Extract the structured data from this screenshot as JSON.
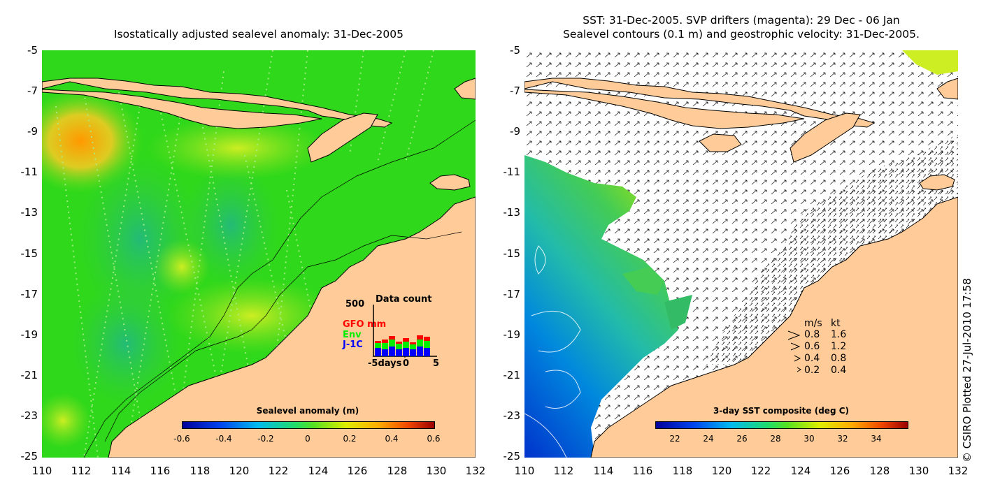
{
  "left_panel": {
    "title": "Isostatically adjusted sealevel anomaly: 31-Dec-2005",
    "y_ticks": [
      "-5",
      "-7",
      "-9",
      "-11",
      "-13",
      "-15",
      "-17",
      "-19",
      "-21",
      "-23",
      "-25"
    ],
    "x_ticks": [
      "110",
      "112",
      "114",
      "116",
      "118",
      "120",
      "122",
      "124",
      "126",
      "128",
      "130",
      "132"
    ],
    "colorbar": {
      "title": "Sealevel anomaly (m)",
      "ticks": [
        "-0.6",
        "-0.4",
        "-0.2",
        "0",
        "0.2",
        "0.4",
        "0.6"
      ]
    },
    "data_count": {
      "title": "Data count",
      "max_label": "500",
      "series": [
        {
          "name": "GFO mm",
          "color": "#ff0000"
        },
        {
          "name": "Env",
          "color": "#00ee00"
        },
        {
          "name": "J-1C",
          "color": "#0000ff"
        }
      ],
      "x_labels": [
        "-5days",
        "0",
        "5"
      ]
    }
  },
  "right_panel": {
    "title_line1": "SST: 31-Dec-2005. SVP drifters (magenta): 29 Dec - 06 Jan",
    "title_line2": "Sealevel contours (0.1 m) and geostrophic velocity: 31-Dec-2005.",
    "y_ticks": [
      "-5",
      "-7",
      "-9",
      "-11",
      "-13",
      "-15",
      "-17",
      "-19",
      "-21",
      "-23",
      "-25"
    ],
    "x_ticks": [
      "110",
      "112",
      "114",
      "116",
      "118",
      "120",
      "122",
      "124",
      "126",
      "128",
      "130",
      "132"
    ],
    "colorbar": {
      "title": "3-day SST composite (deg C)",
      "ticks": [
        "22",
        "24",
        "26",
        "28",
        "30",
        "32",
        "34"
      ]
    },
    "velocity_legend": {
      "header_ms": "m/s",
      "header_kt": "kt",
      "rows": [
        {
          "ms": "0.8",
          "kt": "1.6"
        },
        {
          "ms": "0.6",
          "kt": "1.2"
        },
        {
          "ms": "0.4",
          "kt": "0.8"
        },
        {
          "ms": "0.2",
          "kt": "0.4"
        }
      ]
    }
  },
  "credit": "© CSIRO Plotted 27-Jul-2010 17:58",
  "colors": {
    "land": "#ffcc99",
    "anomaly_base": "#22dd11",
    "sst_blue": "#1166dd"
  }
}
